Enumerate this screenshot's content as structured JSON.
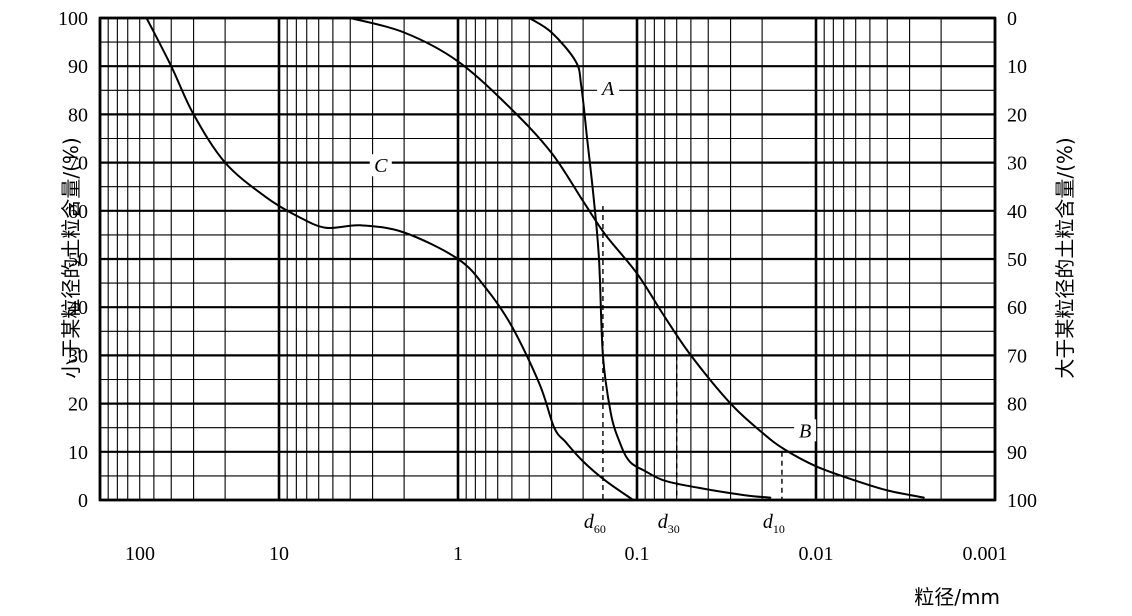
{
  "chart_data": {
    "type": "line",
    "x_scale": "log",
    "x_reversed": true,
    "xlim": [
      100,
      0.001
    ],
    "ylim": [
      0,
      100
    ],
    "y2lim": [
      100,
      0
    ],
    "xlabel": "粒径/mm",
    "ylabel": "小于某粒径的土粒含量/(%)",
    "y2label": "大于某粒径的土粒含量/(%)",
    "x_tick_labels": [
      {
        "value": 100,
        "label": "100"
      },
      {
        "value": 10,
        "label": "10"
      },
      {
        "value": 1,
        "label": "1"
      },
      {
        "value": 0.1,
        "label": "0.1"
      },
      {
        "value": 0.01,
        "label": "0.01"
      },
      {
        "value": 0.001,
        "label": "0.001"
      }
    ],
    "y_ticks": [
      "0",
      "10",
      "20",
      "30",
      "40",
      "50",
      "60",
      "70",
      "80",
      "90",
      "100"
    ],
    "y2_ticks": [
      "100",
      "90",
      "80",
      "70",
      "60",
      "50",
      "40",
      "30",
      "20",
      "10",
      "0"
    ],
    "grid": true,
    "series": [
      {
        "name": "A",
        "label_at": {
          "x": 0.145,
          "y": 84
        },
        "points": [
          {
            "x": 0.4,
            "y": 100
          },
          {
            "x": 0.3,
            "y": 97
          },
          {
            "x": 0.22,
            "y": 91
          },
          {
            "x": 0.205,
            "y": 86
          },
          {
            "x": 0.19,
            "y": 75
          },
          {
            "x": 0.175,
            "y": 63
          },
          {
            "x": 0.163,
            "y": 50
          },
          {
            "x": 0.155,
            "y": 30
          },
          {
            "x": 0.14,
            "y": 18
          },
          {
            "x": 0.125,
            "y": 12
          },
          {
            "x": 0.11,
            "y": 8
          },
          {
            "x": 0.09,
            "y": 6
          },
          {
            "x": 0.07,
            "y": 4
          },
          {
            "x": 0.045,
            "y": 2.5
          },
          {
            "x": 0.025,
            "y": 1
          },
          {
            "x": 0.018,
            "y": 0.5
          }
        ]
      },
      {
        "name": "B",
        "label_at": {
          "x": 0.0115,
          "y": 13
        },
        "points": [
          {
            "x": 4,
            "y": 100
          },
          {
            "x": 2,
            "y": 97
          },
          {
            "x": 1,
            "y": 91
          },
          {
            "x": 0.5,
            "y": 81
          },
          {
            "x": 0.3,
            "y": 72
          },
          {
            "x": 0.2,
            "y": 62
          },
          {
            "x": 0.15,
            "y": 55
          },
          {
            "x": 0.1,
            "y": 47
          },
          {
            "x": 0.07,
            "y": 38
          },
          {
            "x": 0.05,
            "y": 30
          },
          {
            "x": 0.03,
            "y": 20
          },
          {
            "x": 0.02,
            "y": 14
          },
          {
            "x": 0.015,
            "y": 10.5
          },
          {
            "x": 0.01,
            "y": 7
          },
          {
            "x": 0.006,
            "y": 4
          },
          {
            "x": 0.004,
            "y": 2
          },
          {
            "x": 0.0025,
            "y": 0.5
          }
        ]
      },
      {
        "name": "C",
        "label_at": {
          "x": 2.7,
          "y": 68
        },
        "points": [
          {
            "x": 55,
            "y": 100
          },
          {
            "x": 40,
            "y": 90
          },
          {
            "x": 30,
            "y": 80
          },
          {
            "x": 20,
            "y": 70
          },
          {
            "x": 12,
            "y": 63
          },
          {
            "x": 8,
            "y": 59
          },
          {
            "x": 5.5,
            "y": 56.5
          },
          {
            "x": 3.5,
            "y": 57
          },
          {
            "x": 2,
            "y": 55.5
          },
          {
            "x": 1,
            "y": 50
          },
          {
            "x": 0.7,
            "y": 44
          },
          {
            "x": 0.5,
            "y": 36
          },
          {
            "x": 0.35,
            "y": 24
          },
          {
            "x": 0.29,
            "y": 15
          },
          {
            "x": 0.25,
            "y": 12
          },
          {
            "x": 0.2,
            "y": 8
          },
          {
            "x": 0.15,
            "y": 4
          },
          {
            "x": 0.105,
            "y": 0
          }
        ]
      }
    ],
    "reference_lines": [
      {
        "label": "d",
        "sub": "60",
        "x": 0.155,
        "y": 61
      },
      {
        "label": "d",
        "sub": "30",
        "x": 0.06,
        "y": 30
      },
      {
        "label": "d",
        "sub": "10",
        "x": 0.0155,
        "y": 10
      }
    ]
  }
}
